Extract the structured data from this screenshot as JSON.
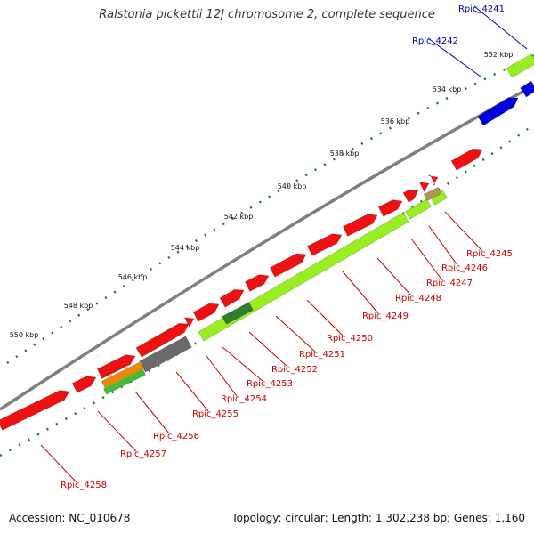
{
  "title": "Ralstonia pickettii 12J chromosome 2, complete sequence",
  "accession_text": "Accession: NC_010678",
  "topology_text": "Topology: circular; Length: 1,302,238 bp; Genes: 1,160",
  "colors": {
    "backbone": "#7f7f7f",
    "red": "#ee1111",
    "blue": "#0000dd",
    "lime": "#99ee22",
    "darkgreen": "#2f7d2f",
    "orange": "#ee8800",
    "gray": "#6a6a6a",
    "ticks": "#1a7a1a",
    "red_label": "#cc0000",
    "blue_label": "#0000bb"
  },
  "ticks": [
    "532 kbp",
    "534 kbp",
    "536 kbp",
    "538 kbp",
    "540 kbp",
    "542 kbp",
    "544 kbp",
    "546 kbp",
    "548 kbp",
    "550 kbp"
  ],
  "genes": [
    {
      "id": "Rpic_4241",
      "color": "blue"
    },
    {
      "id": "Rpic_4242",
      "color": "blue"
    },
    {
      "id": "Rpic_4245",
      "color": "red"
    },
    {
      "id": "Rpic_4246",
      "color": "red"
    },
    {
      "id": "Rpic_4247",
      "color": "red"
    },
    {
      "id": "Rpic_4248",
      "color": "red"
    },
    {
      "id": "Rpic_4249",
      "color": "red"
    },
    {
      "id": "Rpic_4250",
      "color": "red"
    },
    {
      "id": "Rpic_4251",
      "color": "red"
    },
    {
      "id": "Rpic_4252",
      "color": "red"
    },
    {
      "id": "Rpic_4253",
      "color": "red"
    },
    {
      "id": "Rpic_4254",
      "color": "red"
    },
    {
      "id": "Rpic_4255",
      "color": "red"
    },
    {
      "id": "Rpic_4256",
      "color": "red"
    },
    {
      "id": "Rpic_4257",
      "color": "red"
    },
    {
      "id": "Rpic_4258",
      "color": "red"
    }
  ]
}
